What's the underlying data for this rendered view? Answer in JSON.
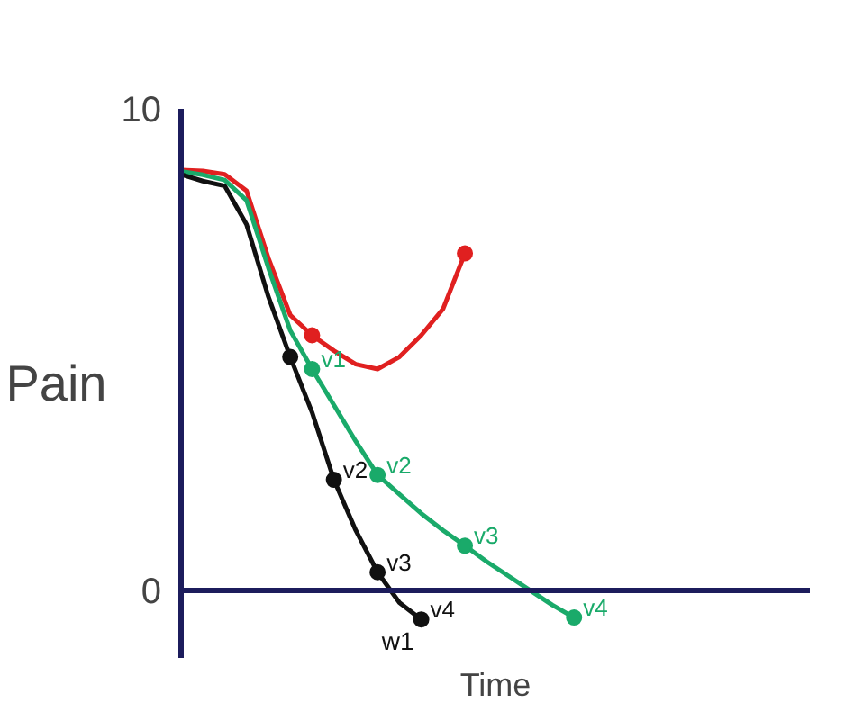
{
  "chart_data": {
    "type": "line",
    "xlabel": "Time",
    "ylabel": "Pain",
    "ylim": [
      -1.4,
      10
    ],
    "yticks": [
      0,
      10
    ],
    "tick_labels": "y",
    "grid": false,
    "marker": "none",
    "line_style": "solid",
    "categories": [
      null,
      null,
      null,
      null,
      null,
      null,
      null,
      null,
      null,
      null,
      null,
      null,
      null,
      null,
      null,
      null,
      null,
      null,
      null
    ],
    "series": [
      {
        "color": "#e02020",
        "values": [
          8.73,
          8.71,
          8.64,
          8.3,
          6.9,
          5.72,
          5.3,
          4.98,
          4.7,
          4.6,
          4.85,
          5.3,
          5.85,
          7.0,
          null,
          null,
          null,
          null,
          null
        ]
      },
      {
        "color": "#1aaa6a",
        "values": [
          8.7,
          8.63,
          8.52,
          8.1,
          6.7,
          5.4,
          4.6,
          3.85,
          3.1,
          2.4,
          2.0,
          1.6,
          1.25,
          0.93,
          0.6,
          0.3,
          0,
          -0.3,
          -0.56
        ]
      },
      {
        "color": "#111111",
        "values": [
          8.64,
          8.5,
          8.4,
          7.6,
          6.1,
          4.85,
          3.7,
          2.3,
          1.25,
          0.38,
          -0.25,
          -0.6,
          null,
          null,
          null,
          null,
          null,
          null,
          null
        ]
      },
      {
        "type": "scatter",
        "marker": "circle",
        "color": "#e02020",
        "values": [
          null,
          null,
          null,
          null,
          null,
          null,
          5.3,
          null,
          null,
          null,
          null,
          null,
          null,
          7.0,
          null,
          null,
          null,
          null,
          null
        ]
      },
      {
        "type": "scatter",
        "marker": "circle",
        "color": "#1aaa6a",
        "values": [
          null,
          null,
          null,
          null,
          null,
          null,
          4.6,
          null,
          null,
          2.4,
          null,
          null,
          null,
          0.93,
          null,
          null,
          null,
          null,
          -0.56
        ],
        "value_labels": [
          null,
          null,
          null,
          null,
          null,
          null,
          "v1",
          null,
          null,
          "v2",
          null,
          null,
          null,
          "v3",
          null,
          null,
          null,
          null,
          "v4"
        ]
      },
      {
        "type": "scatter",
        "marker": "circle",
        "color": "#111111",
        "values": [
          null,
          null,
          null,
          null,
          null,
          4.85,
          null,
          2.3,
          null,
          0.38,
          null,
          -0.6,
          null,
          null,
          null,
          null,
          null,
          null,
          null
        ],
        "value_labels": [
          null,
          null,
          null,
          null,
          null,
          null,
          null,
          "v2",
          null,
          "v3",
          null,
          "v4",
          null,
          null,
          null,
          null,
          null,
          null,
          null
        ]
      }
    ],
    "annotations": [
      "w1"
    ],
    "ref_lines": [
      {
        "axis": "y",
        "value": 0,
        "color": "#1c1c5c"
      }
    ]
  }
}
